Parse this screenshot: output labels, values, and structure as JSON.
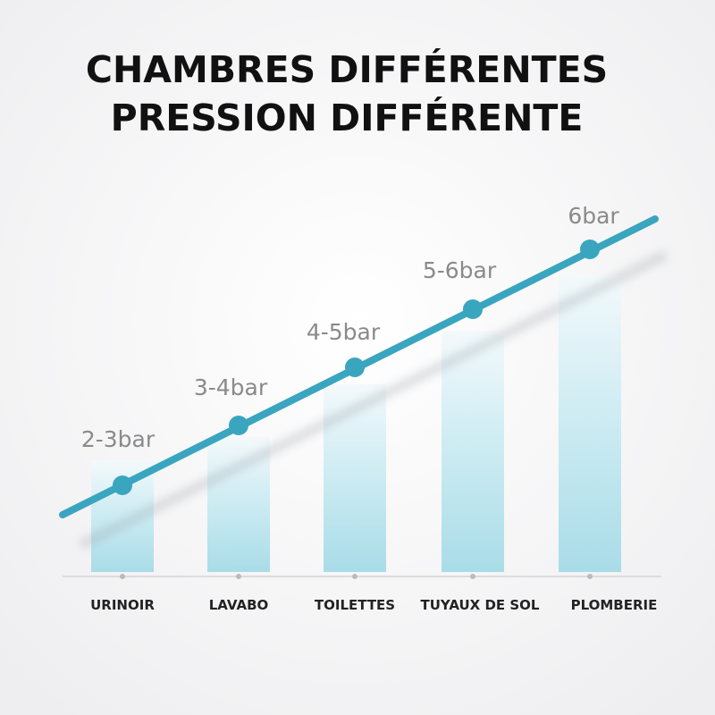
{
  "header": {
    "title_lines": [
      "CHAMBRES DIFFÉRENTES",
      "PRESSION DIFFÉRENTE"
    ]
  },
  "items": [
    {
      "category": "URINOIR",
      "pressure": "2-3bar"
    },
    {
      "category": "LAVABO",
      "pressure": "3-4bar"
    },
    {
      "category": "TOILETTES",
      "pressure": "4-5bar"
    },
    {
      "category": "TUYAUX DE SOL",
      "pressure": "5-6bar"
    },
    {
      "category": "PLOMBERIE",
      "pressure": "6bar"
    }
  ]
}
